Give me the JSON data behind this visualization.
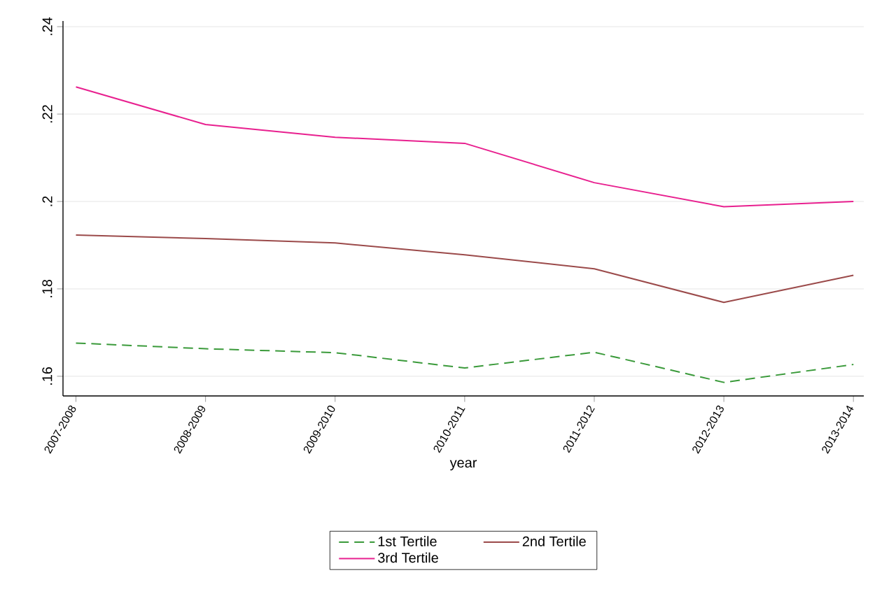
{
  "chart_data": {
    "type": "line",
    "xlabel": "year",
    "categories": [
      "2007-2008",
      "2008-2009",
      "2009-2010",
      "2010-2011",
      "2011-2012",
      "2012-2013",
      "2013-2014"
    ],
    "series": [
      {
        "name": "1st Tertile",
        "color": "#3a9a3a",
        "line_style": "dashed",
        "values": [
          0.1676,
          0.1663,
          0.1654,
          0.1619,
          0.1655,
          0.1586,
          0.1627
        ]
      },
      {
        "name": "2nd Tertile",
        "color": "#9b4a4a",
        "line_style": "solid",
        "values": [
          0.1923,
          0.1915,
          0.1905,
          0.1878,
          0.1846,
          0.1769,
          0.1831
        ]
      },
      {
        "name": "3rd Tertile",
        "color": "#e8208f",
        "line_style": "solid",
        "values": [
          0.2262,
          0.2176,
          0.2147,
          0.2133,
          0.2043,
          0.1988,
          0.2
        ]
      }
    ],
    "ylim": [
      0.1555,
      0.2413
    ],
    "yticks": [
      {
        "value": 0.16,
        "label": ".16"
      },
      {
        "value": 0.18,
        "label": ".18"
      },
      {
        "value": 0.2,
        "label": ".2"
      },
      {
        "value": 0.22,
        "label": ".22"
      },
      {
        "value": 0.24,
        "label": ".24"
      }
    ],
    "grid": "y",
    "legend": "bottom",
    "marker": "none"
  }
}
